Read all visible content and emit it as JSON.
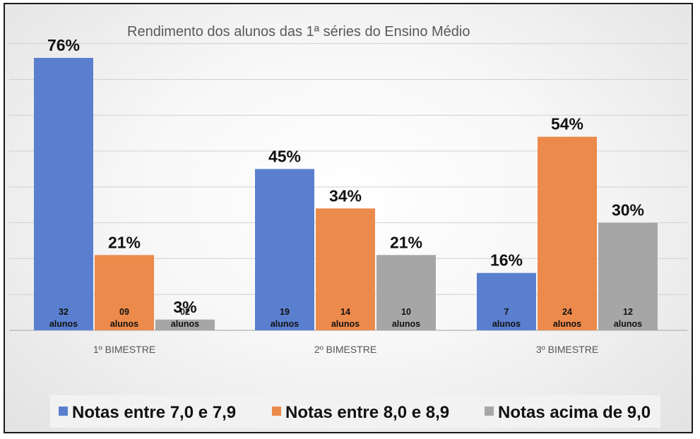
{
  "chart_data": {
    "type": "bar",
    "title": "Rendimento dos alunos das 1ª séries do Ensino Médio",
    "categories": [
      "1º BIMESTRE",
      "2º BIMESTRE",
      "3º BIMESTRE"
    ],
    "series": [
      {
        "name": "Notas entre 7,0 e 7,9",
        "color": "#5B7FCF",
        "values": [
          76,
          45,
          16
        ],
        "labels": [
          "76%",
          "45%",
          "16%"
        ],
        "counts": [
          [
            "32",
            "alunos"
          ],
          [
            "19",
            "alunos"
          ],
          [
            "7",
            "alunos"
          ]
        ]
      },
      {
        "name": "Notas entre 8,0 e 8,9",
        "color": "#EC8A4B",
        "values": [
          21,
          34,
          54
        ],
        "labels": [
          "21%",
          "34%",
          "54%"
        ],
        "counts": [
          [
            "09",
            "alunos"
          ],
          [
            "14",
            "alunos"
          ],
          [
            "24",
            "alunos"
          ]
        ]
      },
      {
        "name": "Notas acima de 9,0",
        "color": "#A6A6A6",
        "values": [
          3,
          21,
          30
        ],
        "labels": [
          "3%",
          "21%",
          "30%"
        ],
        "counts": [
          [
            "02",
            "alunos"
          ],
          [
            "10",
            "alunos"
          ],
          [
            "12",
            "alunos"
          ]
        ]
      }
    ],
    "ylim": [
      0,
      80
    ],
    "grid": true,
    "legend_position": "bottom",
    "value_unit": "%"
  }
}
